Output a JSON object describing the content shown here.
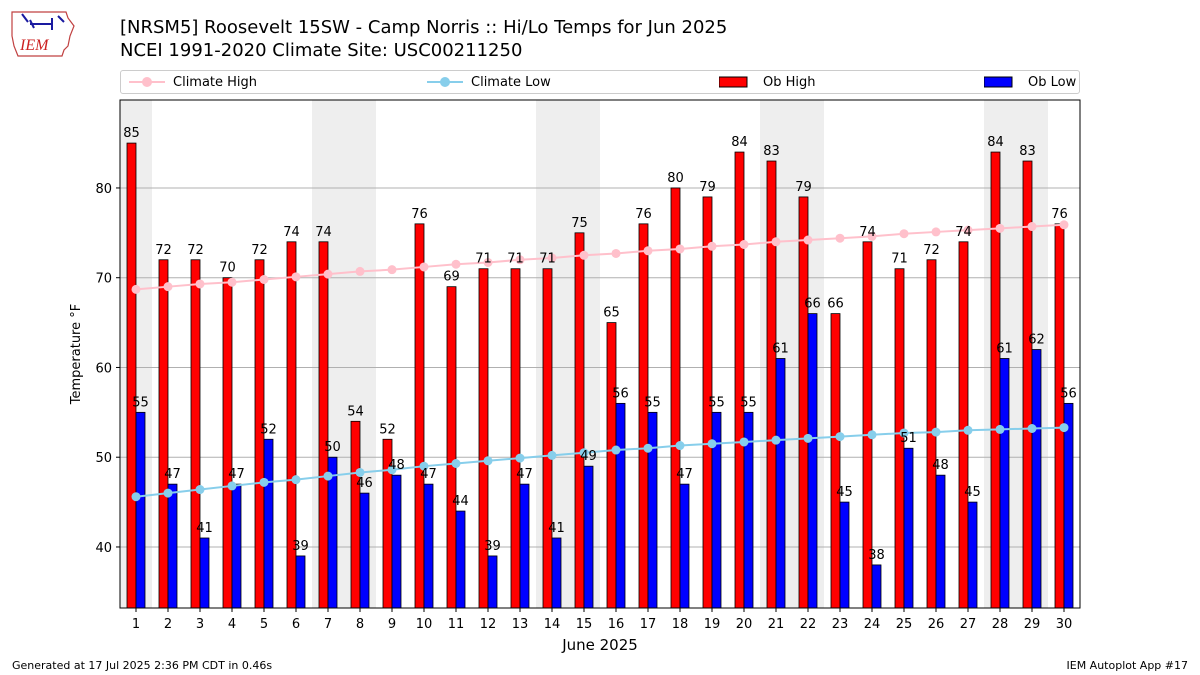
{
  "logo_text": "IEM",
  "title_line1": "[NRSM5] Roosevelt 15SW - Camp Norris :: Hi/Lo Temps for Jun 2025",
  "title_line2": "NCEI 1991-2020 Climate Site: USC00211250",
  "footer_left": "Generated at 17 Jul 2025 2:36 PM CDT in 0.46s",
  "footer_right": "IEM Autoplot App #17",
  "colors": {
    "ob_high": "#ff0000",
    "ob_low": "#0000ff",
    "climate_high": "#ffc0cb",
    "climate_low": "#87ceeb",
    "weekend_band": "#eeeeee",
    "grid": "#b0b0b0"
  },
  "chart_data": {
    "type": "bar",
    "xlabel": "June 2025",
    "ylabel": "Temperature °F",
    "ylim": [
      33.2,
      89.8
    ],
    "yticks": [
      40,
      50,
      60,
      70,
      80
    ],
    "grid": "horizontal",
    "legend_position": "top",
    "categories": [
      "1",
      "2",
      "3",
      "4",
      "5",
      "6",
      "7",
      "8",
      "9",
      "10",
      "11",
      "12",
      "13",
      "14",
      "15",
      "16",
      "17",
      "18",
      "19",
      "20",
      "21",
      "22",
      "23",
      "24",
      "25",
      "26",
      "27",
      "28",
      "29",
      "30"
    ],
    "shaded_days": [
      1,
      7,
      8,
      14,
      15,
      21,
      22,
      28,
      29
    ],
    "series": [
      {
        "name": "Climate High",
        "kind": "line",
        "values": [
          68.7,
          69.0,
          69.3,
          69.5,
          69.8,
          70.1,
          70.4,
          70.7,
          70.9,
          71.2,
          71.5,
          71.7,
          72.0,
          72.2,
          72.5,
          72.7,
          73.0,
          73.2,
          73.5,
          73.7,
          74.0,
          74.2,
          74.4,
          74.6,
          74.9,
          75.1,
          75.3,
          75.5,
          75.7,
          75.9
        ]
      },
      {
        "name": "Climate Low",
        "kind": "line",
        "values": [
          45.6,
          46.0,
          46.4,
          46.8,
          47.2,
          47.5,
          47.9,
          48.3,
          48.6,
          49.0,
          49.3,
          49.6,
          49.9,
          50.2,
          50.5,
          50.8,
          51.0,
          51.3,
          51.5,
          51.7,
          51.9,
          52.1,
          52.3,
          52.5,
          52.7,
          52.8,
          53.0,
          53.1,
          53.2,
          53.3
        ]
      },
      {
        "name": "Ob High",
        "kind": "bar",
        "values": [
          85,
          72,
          72,
          70,
          72,
          74,
          74,
          54,
          52,
          76,
          69,
          71,
          71,
          71,
          75,
          65,
          76,
          80,
          79,
          84,
          83,
          79,
          66,
          74,
          71,
          72,
          74,
          84,
          83,
          76
        ]
      },
      {
        "name": "Ob Low",
        "kind": "bar",
        "values": [
          55,
          47,
          41,
          47,
          52,
          39,
          50,
          46,
          48,
          47,
          44,
          39,
          47,
          41,
          49,
          56,
          55,
          47,
          55,
          55,
          61,
          66,
          45,
          38,
          51,
          48,
          45,
          61,
          62,
          56
        ]
      }
    ]
  }
}
